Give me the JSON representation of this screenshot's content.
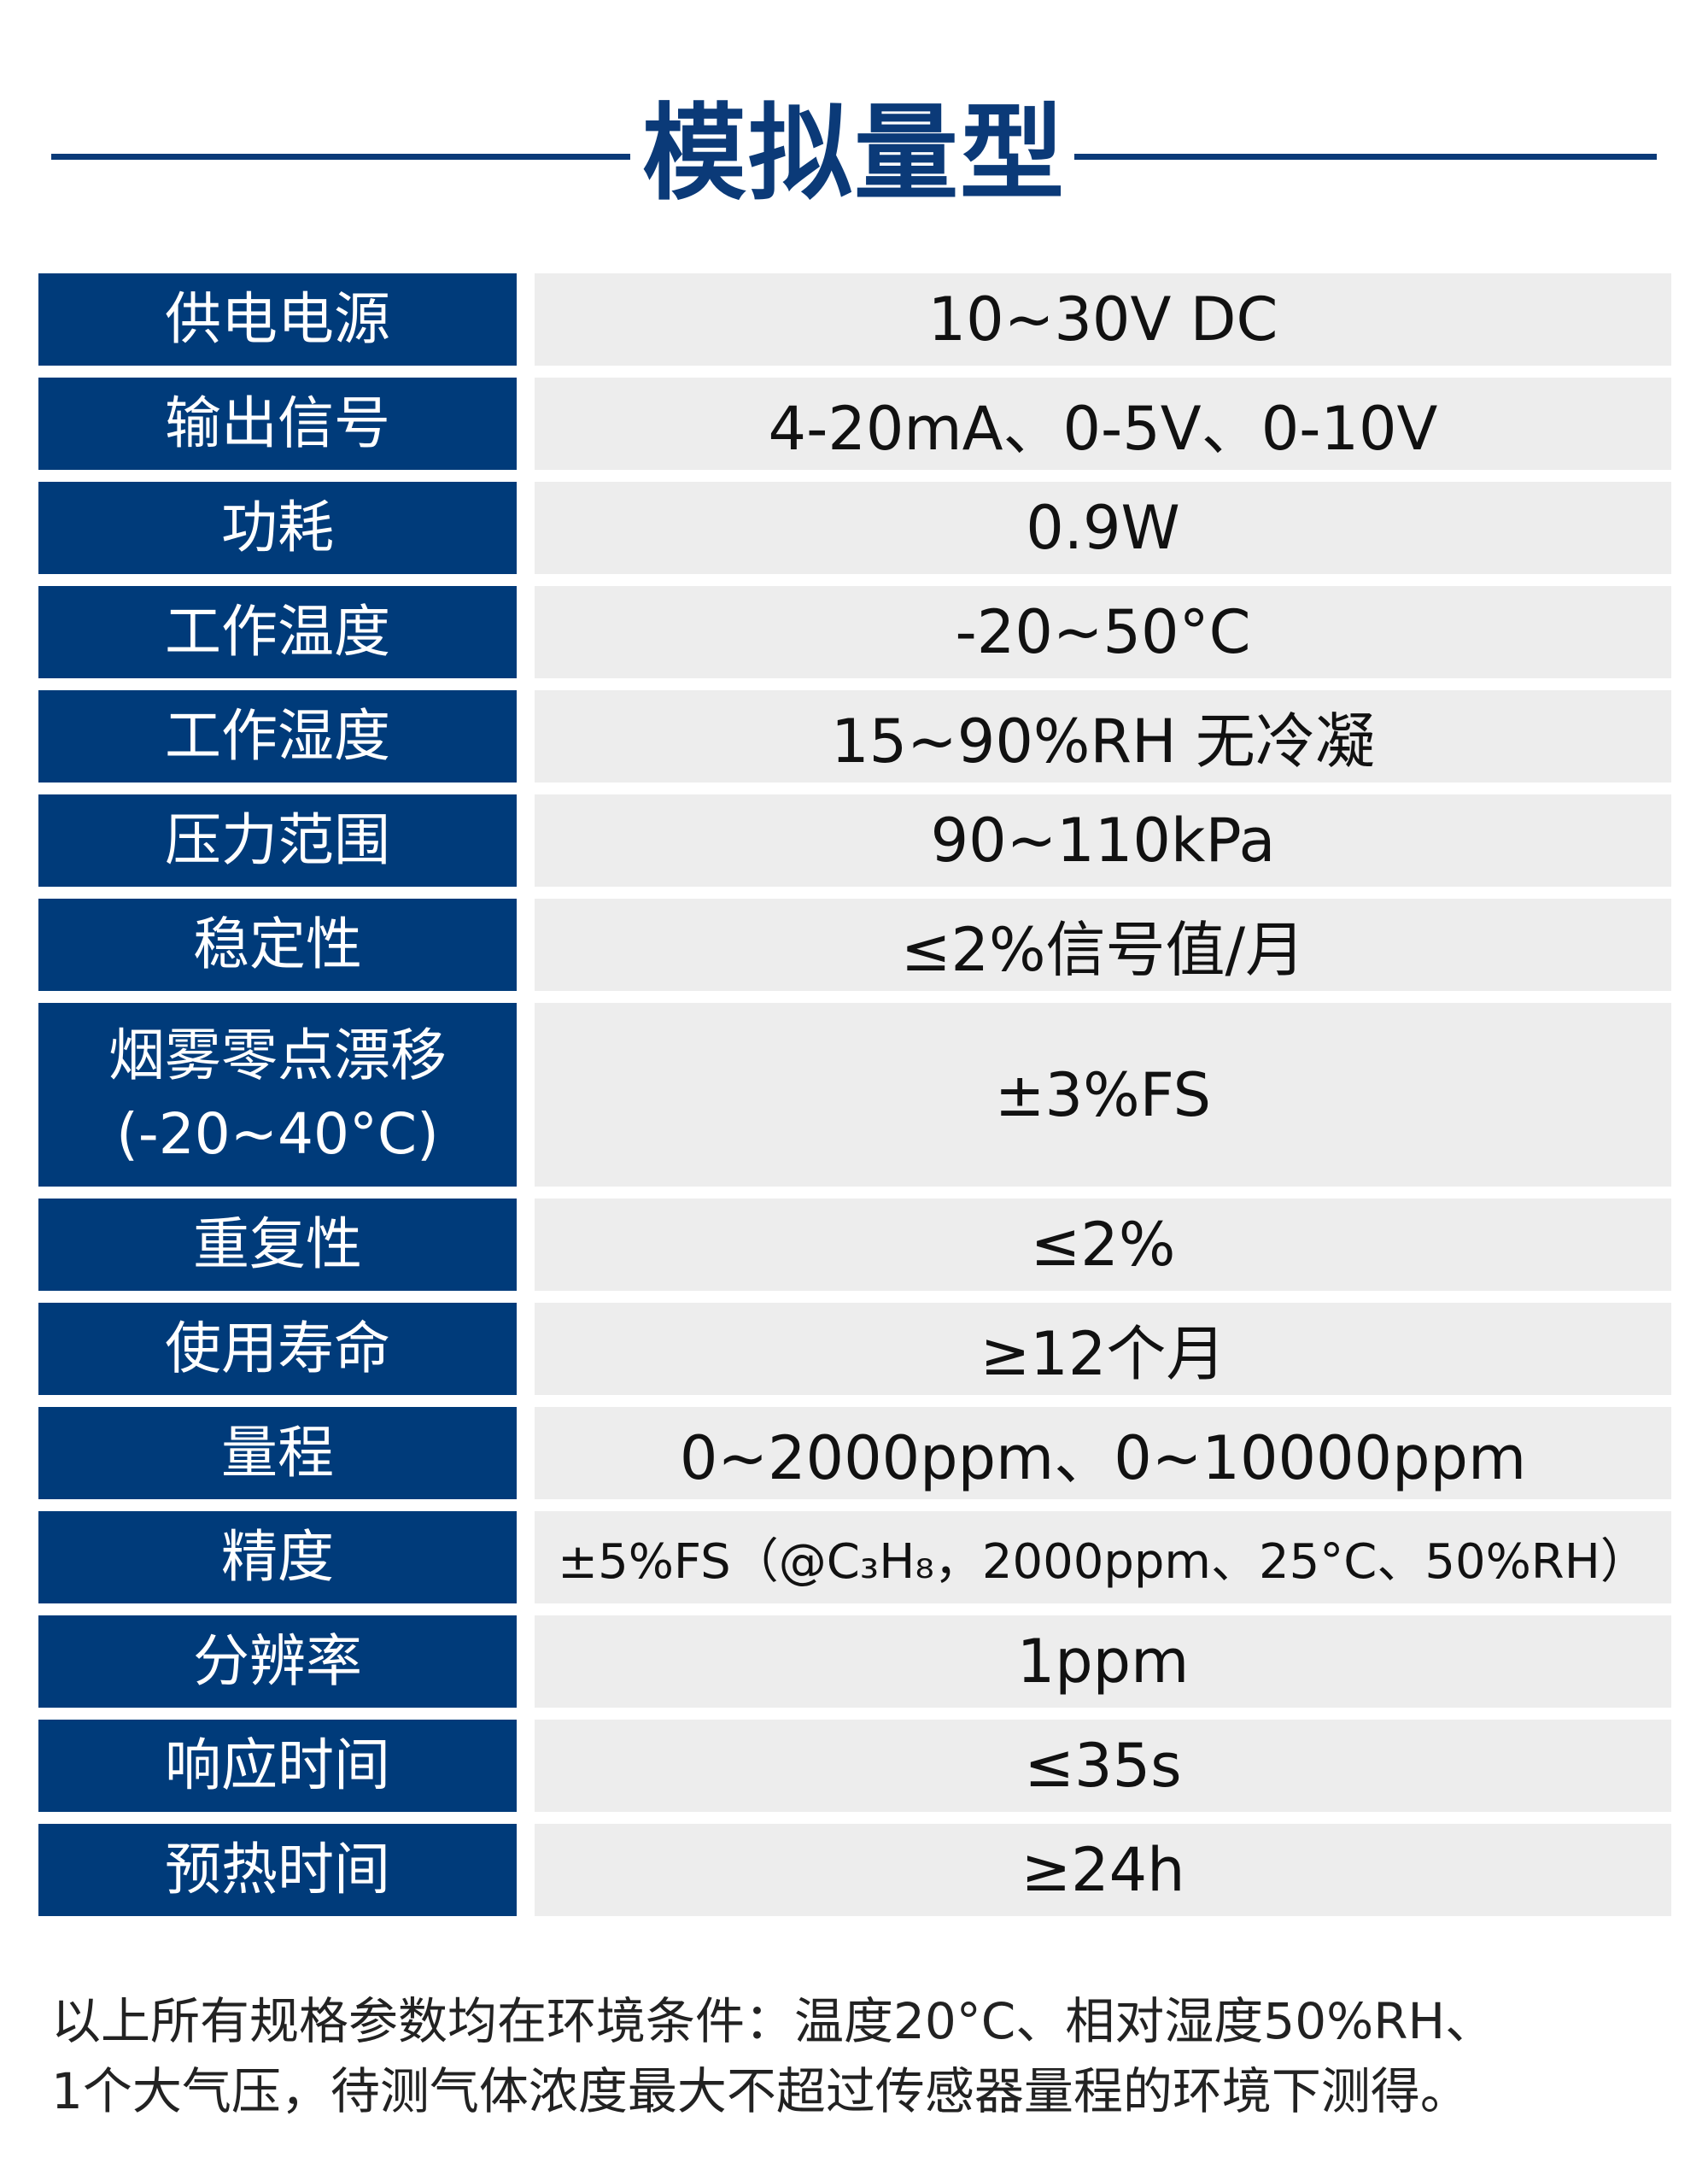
{
  "title": "模拟量型",
  "accent_color": "#003b7a",
  "rows": [
    {
      "label": "供电电源",
      "value": "10~30V DC"
    },
    {
      "label": "输出信号",
      "value": "4-20mA、0-5V、0-10V"
    },
    {
      "label": "功耗",
      "value": "0.9W"
    },
    {
      "label": "工作温度",
      "value": "-20~50°C"
    },
    {
      "label": "工作湿度",
      "value": "15~90%RH 无冷凝"
    },
    {
      "label": "压力范围",
      "value": "90~110kPa"
    },
    {
      "label": "稳定性",
      "value": "≤2%信号值/月"
    },
    {
      "label": "烟雾零点漂移",
      "label2": "(-20~40°C)",
      "value": "±3%FS"
    },
    {
      "label": "重复性",
      "value": "≤2%"
    },
    {
      "label": "使用寿命",
      "value": "≥12个月"
    },
    {
      "label": "量程",
      "value": "0~2000ppm、0~10000ppm"
    },
    {
      "label": "精度",
      "value": "±5%FS（@C₃H₈，2000ppm、25°C、50%RH）"
    },
    {
      "label": "分辨率",
      "value": "1ppm"
    },
    {
      "label": "响应时间",
      "value": "≤35s"
    },
    {
      "label": "预热时间",
      "value": "≥24h"
    }
  ],
  "note": {
    "line1": "以上所有规格参数均在环境条件：温度20°C、相对湿度50%RH、",
    "line2": "1个大气压，待测气体浓度最大不超过传感器量程的环境下测得。"
  }
}
